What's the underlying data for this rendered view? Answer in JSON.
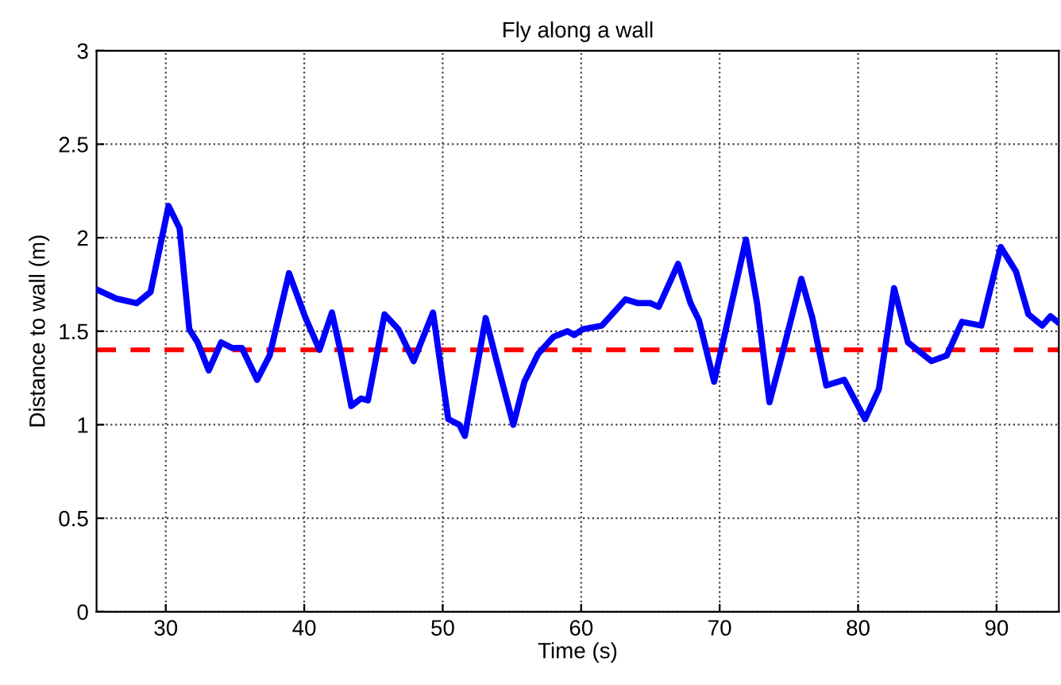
{
  "chart_data": {
    "type": "line",
    "title": "Fly along a wall",
    "xlabel": "Time (s)",
    "ylabel": "Distance to wall (m)",
    "series": [
      {
        "color": "#0000ff",
        "x": [
          25.1,
          26.4,
          27.9,
          28.9,
          30.2,
          31.0,
          31.7,
          32.3,
          33.1,
          34.0,
          34.8,
          35.5,
          36.6,
          37.5,
          38.9,
          40.1,
          41.1,
          42.0,
          42.6,
          43.4,
          44.1,
          44.6,
          45.8,
          46.8,
          47.9,
          49.3,
          50.4,
          51.2,
          51.6,
          53.1,
          54.0,
          55.1,
          55.9,
          56.9,
          58.0,
          59.0,
          59.5,
          60.1,
          61.5,
          63.2,
          64.1,
          65.0,
          65.6,
          67.0,
          67.9,
          68.5,
          69.6,
          71.9,
          72.7,
          73.6,
          74.6,
          75.9,
          76.7,
          77.7,
          79.0,
          80.5,
          81.5,
          82.6,
          83.6,
          85.3,
          86.4,
          87.5,
          88.9,
          90.3,
          91.4,
          92.3,
          93.3,
          93.9,
          94.4
        ],
        "values": [
          1.72,
          1.675,
          1.65,
          1.71,
          2.17,
          2.05,
          1.51,
          1.44,
          1.29,
          1.44,
          1.41,
          1.41,
          1.24,
          1.37,
          1.81,
          1.57,
          1.4,
          1.6,
          1.4,
          1.1,
          1.14,
          1.13,
          1.59,
          1.51,
          1.34,
          1.6,
          1.03,
          1.0,
          0.94,
          1.57,
          1.31,
          1.0,
          1.23,
          1.38,
          1.47,
          1.5,
          1.48,
          1.51,
          1.53,
          1.67,
          1.65,
          1.65,
          1.63,
          1.86,
          1.65,
          1.56,
          1.23,
          1.99,
          1.65,
          1.12,
          1.4,
          1.78,
          1.57,
          1.21,
          1.24,
          1.03,
          1.19,
          1.73,
          1.44,
          1.34,
          1.37,
          1.55,
          1.53,
          1.95,
          1.82,
          1.59,
          1.53,
          1.58,
          1.55
        ]
      }
    ],
    "ref_lines": [
      {
        "axis": "y",
        "value": 1.4,
        "color": "#ff0000",
        "line_style": "dashed"
      }
    ],
    "xlim": [
      25,
      94.5
    ],
    "xticks": [
      30,
      40,
      50,
      60,
      70,
      80,
      90
    ],
    "ylim": [
      0,
      3
    ],
    "yticks": [
      0,
      0.5,
      1,
      1.5,
      2,
      2.5,
      3
    ],
    "grid": true,
    "legend": false,
    "marker": "none",
    "line_style": "solid"
  }
}
